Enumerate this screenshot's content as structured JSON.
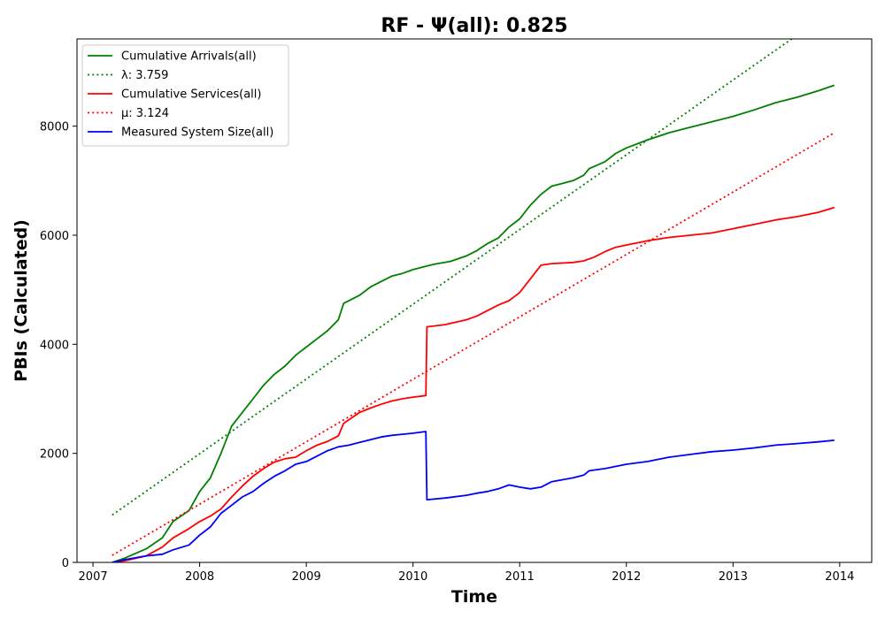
{
  "chart_data": {
    "type": "line",
    "title": "RF -  Ψ(all): 0.825",
    "xlabel": "Time",
    "ylabel": "PBIs (Calculated)",
    "xlim": [
      2006.85,
      2014.3
    ],
    "ylim": [
      0,
      9600
    ],
    "x_ticks": [
      2007,
      2008,
      2009,
      2010,
      2011,
      2012,
      2013,
      2014
    ],
    "x_tick_labels": [
      "2007",
      "2008",
      "2009",
      "2010",
      "2011",
      "2012",
      "2013",
      "2014"
    ],
    "y_ticks": [
      0,
      2000,
      4000,
      6000,
      8000
    ],
    "y_tick_labels": [
      "0",
      "2000",
      "4000",
      "6000",
      "8000"
    ],
    "grid": false,
    "legend_position": "top-left",
    "series": [
      {
        "name": "Cumulative Arrivals(all)",
        "color": "#008000",
        "style": "solid",
        "points": [
          [
            2007.18,
            0
          ],
          [
            2007.3,
            80
          ],
          [
            2007.5,
            250
          ],
          [
            2007.65,
            450
          ],
          [
            2007.75,
            750
          ],
          [
            2007.9,
            950
          ],
          [
            2008.0,
            1300
          ],
          [
            2008.1,
            1550
          ],
          [
            2008.2,
            2000
          ],
          [
            2008.3,
            2500
          ],
          [
            2008.4,
            2750
          ],
          [
            2008.5,
            3000
          ],
          [
            2008.6,
            3250
          ],
          [
            2008.7,
            3450
          ],
          [
            2008.8,
            3600
          ],
          [
            2008.9,
            3800
          ],
          [
            2009.0,
            3950
          ],
          [
            2009.1,
            4100
          ],
          [
            2009.2,
            4250
          ],
          [
            2009.3,
            4450
          ],
          [
            2009.35,
            4750
          ],
          [
            2009.5,
            4900
          ],
          [
            2009.6,
            5050
          ],
          [
            2009.7,
            5150
          ],
          [
            2009.8,
            5250
          ],
          [
            2009.9,
            5300
          ],
          [
            2010.0,
            5370
          ],
          [
            2010.1,
            5420
          ],
          [
            2010.2,
            5470
          ],
          [
            2010.35,
            5520
          ],
          [
            2010.5,
            5620
          ],
          [
            2010.6,
            5720
          ],
          [
            2010.7,
            5850
          ],
          [
            2010.8,
            5950
          ],
          [
            2010.9,
            6150
          ],
          [
            2011.0,
            6300
          ],
          [
            2011.1,
            6550
          ],
          [
            2011.2,
            6750
          ],
          [
            2011.3,
            6900
          ],
          [
            2011.5,
            7000
          ],
          [
            2011.6,
            7100
          ],
          [
            2011.65,
            7220
          ],
          [
            2011.8,
            7350
          ],
          [
            2011.9,
            7500
          ],
          [
            2012.0,
            7600
          ],
          [
            2012.2,
            7750
          ],
          [
            2012.4,
            7880
          ],
          [
            2012.6,
            7980
          ],
          [
            2012.8,
            8080
          ],
          [
            2013.0,
            8180
          ],
          [
            2013.2,
            8300
          ],
          [
            2013.4,
            8430
          ],
          [
            2013.6,
            8530
          ],
          [
            2013.8,
            8650
          ],
          [
            2013.95,
            8750
          ]
        ]
      },
      {
        "name": "λ: 3.759",
        "color": "#008000",
        "style": "dotted",
        "points": [
          [
            2007.18,
            870
          ],
          [
            2013.55,
            9600
          ]
        ]
      },
      {
        "name": "Cumulative Services(all)",
        "color": "#ff0000",
        "style": "solid",
        "points": [
          [
            2007.18,
            0
          ],
          [
            2007.3,
            30
          ],
          [
            2007.5,
            120
          ],
          [
            2007.65,
            280
          ],
          [
            2007.75,
            450
          ],
          [
            2007.9,
            620
          ],
          [
            2008.0,
            750
          ],
          [
            2008.1,
            850
          ],
          [
            2008.2,
            980
          ],
          [
            2008.3,
            1200
          ],
          [
            2008.4,
            1400
          ],
          [
            2008.5,
            1580
          ],
          [
            2008.6,
            1720
          ],
          [
            2008.7,
            1840
          ],
          [
            2008.8,
            1900
          ],
          [
            2008.9,
            1930
          ],
          [
            2009.0,
            2050
          ],
          [
            2009.1,
            2150
          ],
          [
            2009.2,
            2220
          ],
          [
            2009.3,
            2320
          ],
          [
            2009.35,
            2550
          ],
          [
            2009.5,
            2750
          ],
          [
            2009.6,
            2830
          ],
          [
            2009.7,
            2900
          ],
          [
            2009.8,
            2960
          ],
          [
            2009.9,
            3000
          ],
          [
            2010.0,
            3030
          ],
          [
            2010.12,
            3060
          ],
          [
            2010.13,
            4320
          ],
          [
            2010.3,
            4360
          ],
          [
            2010.5,
            4450
          ],
          [
            2010.6,
            4520
          ],
          [
            2010.7,
            4620
          ],
          [
            2010.8,
            4720
          ],
          [
            2010.9,
            4800
          ],
          [
            2011.0,
            4950
          ],
          [
            2011.1,
            5200
          ],
          [
            2011.2,
            5450
          ],
          [
            2011.3,
            5480
          ],
          [
            2011.5,
            5500
          ],
          [
            2011.6,
            5530
          ],
          [
            2011.7,
            5600
          ],
          [
            2011.8,
            5700
          ],
          [
            2011.9,
            5780
          ],
          [
            2012.0,
            5820
          ],
          [
            2012.2,
            5900
          ],
          [
            2012.4,
            5960
          ],
          [
            2012.6,
            6000
          ],
          [
            2012.8,
            6040
          ],
          [
            2013.0,
            6120
          ],
          [
            2013.2,
            6200
          ],
          [
            2013.4,
            6280
          ],
          [
            2013.6,
            6340
          ],
          [
            2013.8,
            6420
          ],
          [
            2013.95,
            6510
          ]
        ]
      },
      {
        "name": "μ: 3.124",
        "color": "#ff0000",
        "style": "dotted",
        "points": [
          [
            2007.18,
            130
          ],
          [
            2013.95,
            7880
          ]
        ]
      },
      {
        "name": "Measured System Size(all)",
        "color": "#0000ff",
        "style": "solid",
        "points": [
          [
            2007.18,
            0
          ],
          [
            2007.3,
            50
          ],
          [
            2007.5,
            120
          ],
          [
            2007.65,
            150
          ],
          [
            2007.75,
            230
          ],
          [
            2007.9,
            320
          ],
          [
            2008.0,
            500
          ],
          [
            2008.1,
            650
          ],
          [
            2008.2,
            900
          ],
          [
            2008.3,
            1050
          ],
          [
            2008.4,
            1200
          ],
          [
            2008.5,
            1300
          ],
          [
            2008.6,
            1450
          ],
          [
            2008.7,
            1580
          ],
          [
            2008.8,
            1680
          ],
          [
            2008.9,
            1800
          ],
          [
            2009.0,
            1850
          ],
          [
            2009.1,
            1950
          ],
          [
            2009.2,
            2050
          ],
          [
            2009.3,
            2120
          ],
          [
            2009.4,
            2150
          ],
          [
            2009.5,
            2200
          ],
          [
            2009.6,
            2250
          ],
          [
            2009.7,
            2300
          ],
          [
            2009.8,
            2330
          ],
          [
            2009.9,
            2350
          ],
          [
            2010.0,
            2370
          ],
          [
            2010.12,
            2400
          ],
          [
            2010.13,
            1150
          ],
          [
            2010.3,
            1180
          ],
          [
            2010.5,
            1230
          ],
          [
            2010.6,
            1270
          ],
          [
            2010.7,
            1300
          ],
          [
            2010.8,
            1350
          ],
          [
            2010.9,
            1420
          ],
          [
            2011.0,
            1380
          ],
          [
            2011.1,
            1350
          ],
          [
            2011.2,
            1380
          ],
          [
            2011.3,
            1480
          ],
          [
            2011.5,
            1550
          ],
          [
            2011.6,
            1600
          ],
          [
            2011.65,
            1680
          ],
          [
            2011.8,
            1720
          ],
          [
            2012.0,
            1800
          ],
          [
            2012.2,
            1850
          ],
          [
            2012.4,
            1930
          ],
          [
            2012.6,
            1980
          ],
          [
            2012.8,
            2030
          ],
          [
            2013.0,
            2060
          ],
          [
            2013.2,
            2100
          ],
          [
            2013.4,
            2150
          ],
          [
            2013.6,
            2180
          ],
          [
            2013.8,
            2210
          ],
          [
            2013.95,
            2240
          ]
        ]
      }
    ]
  }
}
